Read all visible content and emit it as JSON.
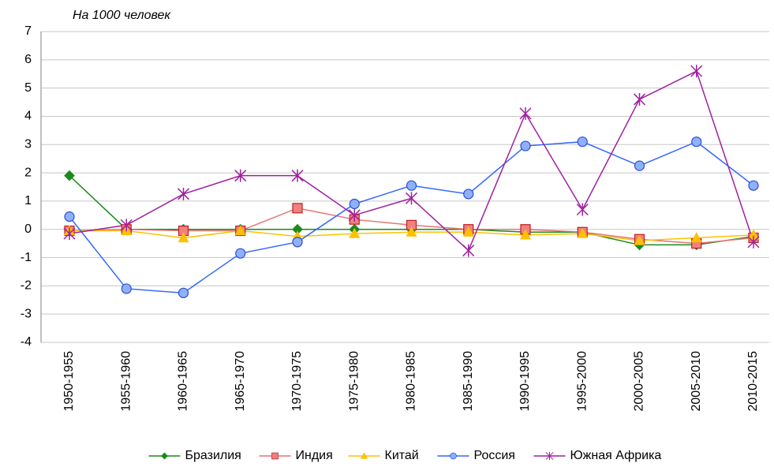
{
  "chart_data": {
    "type": "line",
    "subtitle": "На 1000 человек",
    "categories": [
      "1950-1955",
      "1955-1960",
      "1960-1965",
      "1965-1970",
      "1970-1975",
      "1975-1980",
      "1980-1985",
      "1985-1990",
      "1990-1995",
      "1995-2000",
      "2000-2005",
      "2005-2010",
      "2010-2015"
    ],
    "series": [
      {
        "name": "Бразилия",
        "color": "#1a8a1a",
        "marker": "diamond",
        "values": [
          1.9,
          0,
          0,
          0,
          0,
          0,
          0,
          0,
          -0.1,
          -0.1,
          -0.55,
          -0.55,
          -0.25
        ]
      },
      {
        "name": "Индия",
        "color": "#e57373",
        "marker": "square",
        "values": [
          -0.05,
          0,
          -0.05,
          -0.05,
          0.75,
          0.35,
          0.15,
          0,
          0,
          -0.1,
          -0.35,
          -0.5,
          -0.3
        ]
      },
      {
        "name": "Китай",
        "color": "#ffc000",
        "marker": "triangle",
        "values": [
          -0.05,
          -0.05,
          -0.3,
          -0.05,
          -0.25,
          -0.15,
          -0.1,
          -0.1,
          -0.2,
          -0.15,
          -0.4,
          -0.3,
          -0.2
        ]
      },
      {
        "name": "Россия",
        "color": "#3366ff",
        "marker": "circle",
        "values": [
          0.45,
          -2.1,
          -2.25,
          -0.85,
          -0.45,
          0.9,
          1.55,
          1.25,
          2.95,
          3.1,
          2.25,
          3.1,
          1.55
        ]
      },
      {
        "name": "Южная Африка",
        "color": "#a020a0",
        "marker": "star",
        "values": [
          -0.15,
          0.15,
          1.25,
          1.9,
          1.9,
          0.5,
          1.1,
          -0.75,
          4.1,
          0.7,
          4.6,
          5.6,
          -0.45
        ]
      }
    ],
    "ylim": [
      -4,
      7
    ],
    "yticks": [
      -4,
      -3,
      -2,
      -1,
      0,
      1,
      2,
      3,
      4,
      5,
      6,
      7
    ],
    "grid": true,
    "legend": "bottom"
  }
}
